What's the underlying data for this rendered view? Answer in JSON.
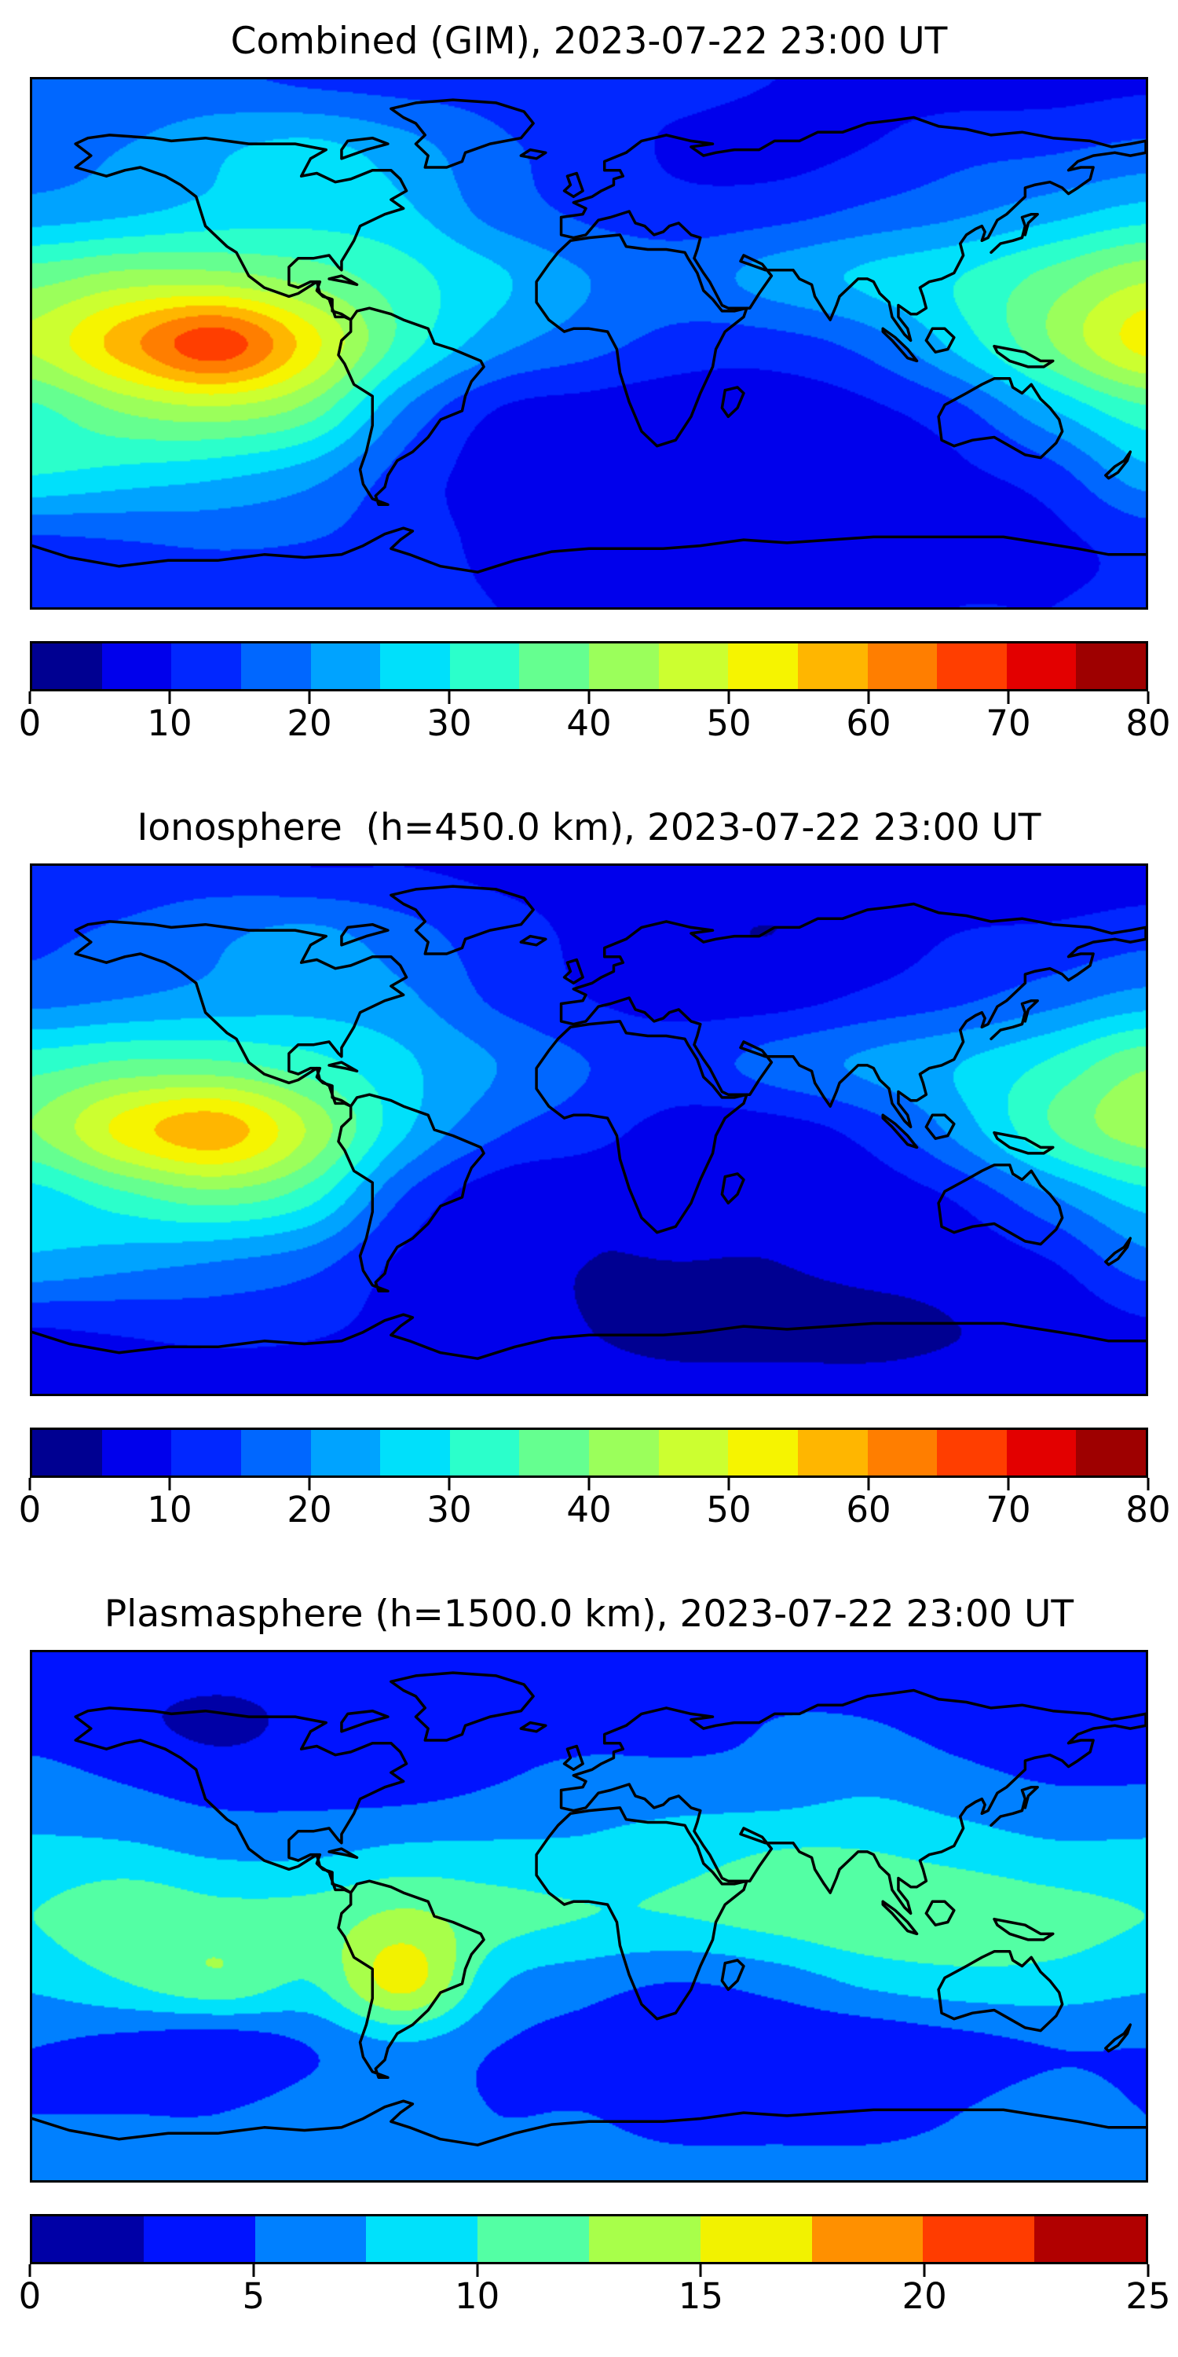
{
  "figure": {
    "background": "#ffffff",
    "coastline_color": "#000000",
    "n_panels": 3
  },
  "chart_data": [
    {
      "type": "heatmap",
      "title": "Combined (GIM), 2023-07-22 23:00 UT",
      "date": "2023-07-22",
      "time_ut": "23:00",
      "projection": "equirectangular",
      "extent": {
        "lon": [
          -180,
          180
        ],
        "lat": [
          -90,
          90
        ]
      },
      "levels": {
        "min": 0,
        "max": 80,
        "step": 5
      },
      "colorbar_ticks": [
        0,
        10,
        20,
        30,
        40,
        50,
        60,
        70,
        80
      ],
      "palette": [
        "#000091",
        "#0000ec",
        "#0127ff",
        "#0067ff",
        "#00a3ff",
        "#00e0fb",
        "#2bffcb",
        "#65ff90",
        "#9bff5b",
        "#ccff30",
        "#f6f400",
        "#ffb600",
        "#ff7e00",
        "#ff3e00",
        "#e30000",
        "#9e0000"
      ],
      "grid": {
        "lons": [
          -180,
          -150,
          -120,
          -90,
          -60,
          -30,
          0,
          30,
          60,
          90,
          120,
          150,
          180
        ],
        "lats": [
          90,
          67.5,
          45,
          22.5,
          0,
          -22.5,
          -45,
          -67.5,
          -90
        ],
        "values": [
          [
            16,
            16,
            16,
            14,
            13,
            13,
            12,
            12,
            10,
            9,
            8,
            8,
            9
          ],
          [
            18,
            20,
            24,
            26,
            22,
            16,
            13,
            9,
            8,
            10,
            13,
            14,
            16
          ],
          [
            22,
            24,
            27,
            28,
            26,
            18,
            14,
            12,
            13,
            16,
            19,
            23,
            27
          ],
          [
            38,
            42,
            42,
            38,
            32,
            26,
            20,
            18,
            22,
            26,
            30,
            37,
            44
          ],
          [
            46,
            58,
            68,
            52,
            33,
            22,
            17,
            13,
            13,
            17,
            27,
            40,
            52
          ],
          [
            34,
            41,
            44,
            38,
            20,
            10,
            8,
            7,
            7,
            9,
            14,
            25,
            34
          ],
          [
            30,
            28,
            26,
            22,
            13,
            8,
            7,
            6,
            6,
            7,
            9,
            13,
            23
          ],
          [
            14,
            15,
            16,
            15,
            12,
            9,
            8,
            7,
            7,
            7,
            8,
            9,
            12
          ],
          [
            11,
            11,
            11,
            11,
            11,
            10,
            9,
            9,
            9,
            9,
            10,
            10,
            11
          ]
        ]
      }
    },
    {
      "type": "heatmap",
      "title": "Ionosphere  (h=450.0 km), 2023-07-22 23:00 UT",
      "date": "2023-07-22",
      "time_ut": "23:00",
      "height_km": 450.0,
      "projection": "equirectangular",
      "extent": {
        "lon": [
          -180,
          180
        ],
        "lat": [
          -90,
          90
        ]
      },
      "levels": {
        "min": 0,
        "max": 80,
        "step": 5
      },
      "colorbar_ticks": [
        0,
        10,
        20,
        30,
        40,
        50,
        60,
        70,
        80
      ],
      "palette": [
        "#000091",
        "#0000ec",
        "#0127ff",
        "#0067ff",
        "#00a3ff",
        "#00e0fb",
        "#2bffcb",
        "#65ff90",
        "#9bff5b",
        "#ccff30",
        "#f6f400",
        "#ffb600",
        "#ff7e00",
        "#ff3e00",
        "#e30000",
        "#9e0000"
      ],
      "grid": {
        "lons": [
          -180,
          -150,
          -120,
          -90,
          -60,
          -30,
          0,
          30,
          60,
          90,
          120,
          150,
          180
        ],
        "lats": [
          90,
          67.5,
          45,
          22.5,
          0,
          -22.5,
          -45,
          -67.5,
          -90
        ],
        "values": [
          [
            12,
            12,
            12,
            10,
            10,
            9,
            9,
            9,
            7,
            6,
            6,
            6,
            7
          ],
          [
            14,
            16,
            19,
            21,
            17,
            12,
            9,
            6,
            5,
            7,
            10,
            11,
            13
          ],
          [
            18,
            20,
            22,
            23,
            21,
            14,
            10,
            8,
            8,
            11,
            14,
            18,
            22
          ],
          [
            33,
            36,
            36,
            32,
            26,
            20,
            15,
            13,
            17,
            21,
            25,
            31,
            39
          ],
          [
            40,
            52,
            58,
            44,
            26,
            16,
            12,
            8,
            8,
            12,
            22,
            35,
            43
          ],
          [
            28,
            34,
            38,
            32,
            15,
            7,
            6,
            6,
            6,
            7,
            11,
            20,
            28
          ],
          [
            24,
            22,
            20,
            17,
            9,
            6,
            5,
            5,
            5,
            6,
            7,
            10,
            18
          ],
          [
            10,
            11,
            12,
            11,
            8,
            6,
            5,
            4,
            4,
            4,
            5,
            6,
            9
          ],
          [
            7,
            7,
            7,
            7,
            7,
            6,
            6,
            6,
            6,
            6,
            6,
            6,
            7
          ]
        ]
      }
    },
    {
      "type": "heatmap",
      "title": "Plasmasphere (h=1500.0 km), 2023-07-22 23:00 UT",
      "date": "2023-07-22",
      "time_ut": "23:00",
      "height_km": 1500.0,
      "projection": "equirectangular",
      "extent": {
        "lon": [
          -180,
          180
        ],
        "lat": [
          -90,
          90
        ]
      },
      "levels": {
        "min": 0,
        "max": 25,
        "step": 2.5
      },
      "colorbar_ticks": [
        0,
        5,
        10,
        15,
        20,
        25
      ],
      "palette": [
        "#0000a6",
        "#0013ff",
        "#0080ff",
        "#00e1fb",
        "#53ffa4",
        "#a8ff4a",
        "#f2f200",
        "#ff9000",
        "#ff3c00",
        "#b10000"
      ],
      "grid": {
        "lons": [
          -180,
          -150,
          -120,
          -90,
          -60,
          -30,
          0,
          30,
          60,
          90,
          120,
          150,
          180
        ],
        "lats": [
          90,
          67.5,
          45,
          22.5,
          0,
          -22.5,
          -45,
          -67.5,
          -90
        ],
        "values": [
          [
            4,
            4,
            4,
            4,
            4,
            4,
            4,
            4,
            4,
            4,
            4,
            4,
            4
          ],
          [
            4,
            3,
            2,
            3,
            3,
            4,
            4,
            4,
            5,
            5,
            4,
            3,
            3
          ],
          [
            6,
            5,
            4,
            4,
            4,
            5,
            6,
            6,
            6,
            7,
            6,
            5,
            5
          ],
          [
            8,
            8,
            7,
            7,
            8,
            8,
            8,
            9,
            10,
            10,
            9,
            8,
            8
          ],
          [
            10,
            12,
            11,
            11,
            13,
            11,
            10,
            10,
            11,
            12,
            12,
            11,
            10
          ],
          [
            8,
            10,
            12,
            10,
            16,
            8,
            6,
            5,
            6,
            8,
            9,
            9,
            8
          ],
          [
            5,
            4,
            3,
            5,
            7,
            5,
            4,
            3,
            3,
            3,
            4,
            5,
            5
          ],
          [
            5,
            5,
            5,
            6,
            6,
            5,
            5,
            4,
            4,
            4,
            5,
            6,
            5
          ],
          [
            6,
            6,
            6,
            6,
            6,
            6,
            6,
            6,
            6,
            6,
            6,
            6,
            6
          ]
        ]
      }
    }
  ]
}
